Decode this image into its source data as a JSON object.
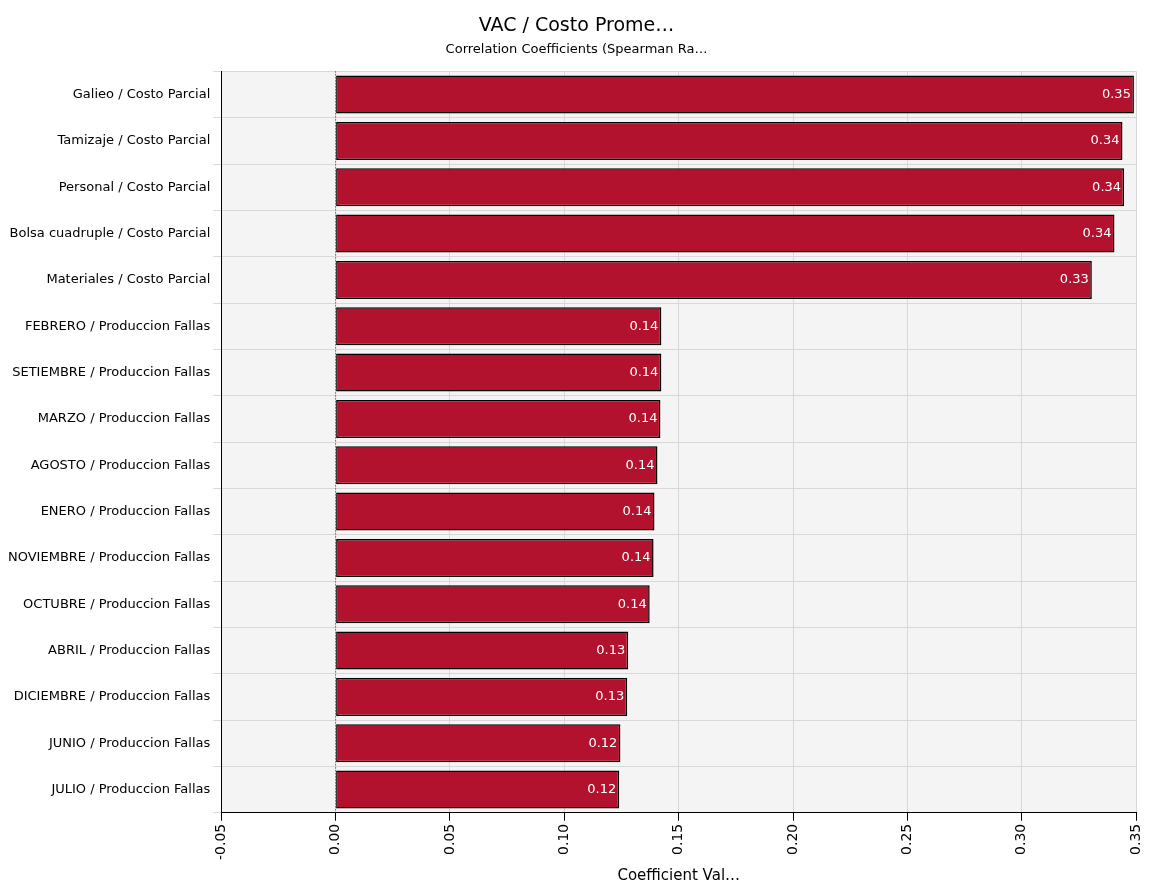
{
  "chart_data": {
    "type": "bar",
    "orientation": "horizontal",
    "title": "VAC / Costo Prome…",
    "subtitle": "Correlation Coefficients (Spearman Ra…",
    "xlabel": "Coefficient Val…",
    "categories": [
      "Galieo / Costo Parcial",
      "Tamizaje / Costo Parcial",
      "Personal / Costo Parcial",
      "Bolsa cuadruple / Costo Parcial",
      "Materiales / Costo Parcial",
      "FEBRERO / Produccion Fallas",
      "SETIEMBRE / Produccion Fallas",
      "MARZO / Produccion Fallas",
      "AGOSTO / Produccion Fallas",
      "ENERO / Produccion Fallas",
      "NOVIEMBRE / Produccion Fallas",
      "OCTUBRE / Produccion Fallas",
      "ABRIL / Produccion Fallas",
      "DICIEMBRE / Produccion Fallas",
      "JUNIO / Produccion Fallas",
      "JULIO / Produccion Fallas"
    ],
    "values": [
      0.349,
      0.344,
      0.3447,
      0.3405,
      0.3306,
      0.1424,
      0.1424,
      0.142,
      0.1407,
      0.1394,
      0.139,
      0.1373,
      0.1279,
      0.1275,
      0.1245,
      0.124
    ],
    "value_labels": [
      "0.35",
      "0.34",
      "0.34",
      "0.34",
      "0.33",
      "0.14",
      "0.14",
      "0.14",
      "0.14",
      "0.14",
      "0.14",
      "0.14",
      "0.13",
      "0.13",
      "0.12",
      "0.12"
    ],
    "color": "#b3122e",
    "xlim": [
      -0.05,
      0.35
    ],
    "xticks": [
      {
        "value": -0.05,
        "label": "-0.05"
      },
      {
        "value": 0,
        "label": "0.00"
      },
      {
        "value": 0.05,
        "label": "0.05"
      },
      {
        "value": 0.1,
        "label": "0.10"
      },
      {
        "value": 0.15,
        "label": "0.15"
      },
      {
        "value": 0.2,
        "label": "0.20"
      },
      {
        "value": 0.25,
        "label": "0.25"
      },
      {
        "value": 0.3,
        "label": "0.30"
      },
      {
        "value": 0.35,
        "label": "0.35"
      }
    ],
    "ref_lines": [
      {
        "axis": "x",
        "value": 0,
        "color": "#c00000",
        "line_style": "dotted"
      }
    ],
    "grid": true,
    "legend": false
  }
}
